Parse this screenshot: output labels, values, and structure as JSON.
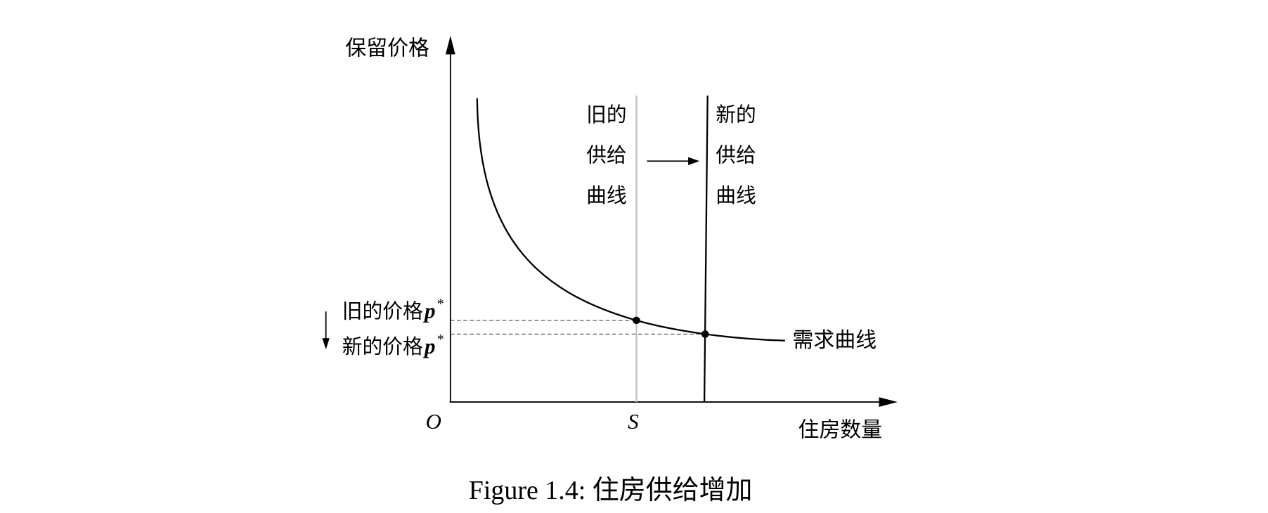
{
  "figure": {
    "y_axis_label": "保留价格",
    "x_axis_label": "住房数量",
    "origin_label": "O",
    "quantity_label": "S",
    "old_supply_label": [
      "旧的",
      "供给",
      "曲线"
    ],
    "new_supply_label": [
      "新的",
      "供给",
      "曲线"
    ],
    "old_price_label": {
      "text": "旧的价格",
      "symbol": "p",
      "superscript": "*"
    },
    "new_price_label": {
      "text": "新的价格",
      "symbol": "p",
      "superscript": "*"
    },
    "demand_curve_label": "需求曲线"
  },
  "caption": "Figure 1.4: 住房供给增加",
  "colors": {
    "ink": "#000000",
    "old_supply_curve": "#c2c2c2",
    "price_guide_lines": "#444444"
  }
}
